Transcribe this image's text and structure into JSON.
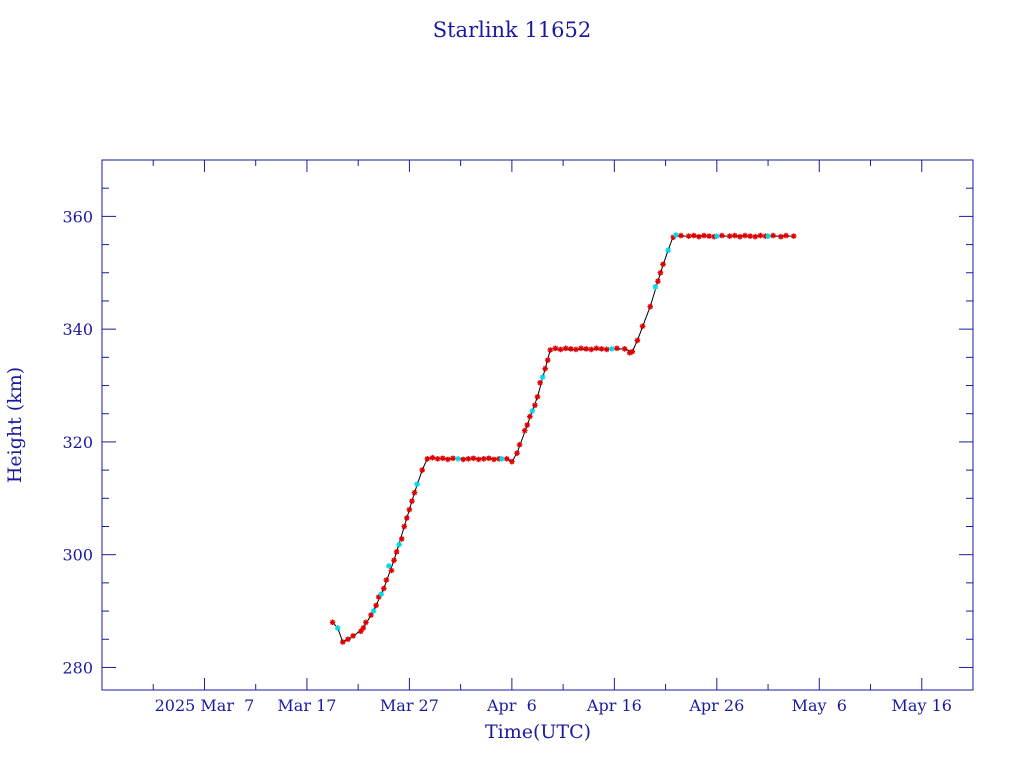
{
  "chart_data": {
    "type": "scatter",
    "title": "Starlink 11652",
    "xlabel": "Time(UTC)",
    "ylabel": "Height (km)",
    "x_is_date": true,
    "xlim": [
      "2025-02-25",
      "2025-05-21"
    ],
    "ylim": [
      276,
      370
    ],
    "x_ticks": [
      {
        "date": "2025-03-07",
        "label": "2025 Mar  7"
      },
      {
        "date": "2025-03-17",
        "label": "Mar 17"
      },
      {
        "date": "2025-03-27",
        "label": "Mar 27"
      },
      {
        "date": "2025-04-06",
        "label": "Apr  6"
      },
      {
        "date": "2025-04-16",
        "label": "Apr 16"
      },
      {
        "date": "2025-04-26",
        "label": "Apr 26"
      },
      {
        "date": "2025-05-06",
        "label": "May  6"
      },
      {
        "date": "2025-05-16",
        "label": "May 16"
      }
    ],
    "x_minor_tick_days": 5,
    "y_ticks": [
      280,
      300,
      320,
      340,
      360
    ],
    "y_minor_step": 5,
    "grid": false,
    "colors": {
      "frame": "#1a1aa0",
      "text": "#1a1aa0",
      "line": "#000000",
      "primary_marker": "#e00000",
      "secondary_marker": "#00d8e8"
    },
    "series": [
      {
        "type": "line",
        "points": [
          [
            "2025-03-19 12:00",
            288
          ],
          [
            "2025-03-20 00:00",
            287
          ],
          [
            "2025-03-20 12:00",
            284.5
          ],
          [
            "2025-03-21 12:00",
            285.5
          ],
          [
            "2025-03-22 12:00",
            287
          ],
          [
            "2025-03-23 12:00",
            290
          ],
          [
            "2025-03-24 12:00",
            294
          ],
          [
            "2025-03-25 12:00",
            299
          ],
          [
            "2025-03-26 12:00",
            305
          ],
          [
            "2025-03-27 12:00",
            311
          ],
          [
            "2025-03-28 06:00",
            315
          ],
          [
            "2025-03-28 18:00",
            317
          ],
          [
            "2025-04-05 12:00",
            317
          ],
          [
            "2025-04-06 00:00",
            316.5
          ],
          [
            "2025-04-06 12:00",
            318
          ],
          [
            "2025-04-07 12:00",
            323
          ],
          [
            "2025-04-08 12:00",
            328
          ],
          [
            "2025-04-09 06:00",
            333
          ],
          [
            "2025-04-09 18:00",
            336.3
          ],
          [
            "2025-04-17 00:00",
            336.5
          ],
          [
            "2025-04-17 18:00",
            336
          ],
          [
            "2025-04-18 06:00",
            338
          ],
          [
            "2025-04-19 12:00",
            344
          ],
          [
            "2025-04-20 12:00",
            350
          ],
          [
            "2025-04-21 06:00",
            354
          ],
          [
            "2025-04-21 18:00",
            356.5
          ],
          [
            "2025-05-03 12:00",
            356.5
          ]
        ]
      },
      {
        "type": "scatter",
        "marker": "asterisk",
        "color_key": "primary_marker",
        "points": [
          [
            "2025-03-19 12:00",
            288
          ],
          [
            "2025-03-20 12:00",
            284.5
          ],
          [
            "2025-03-21 00:00",
            285
          ],
          [
            "2025-03-21 12:00",
            285.6
          ],
          [
            "2025-03-22 06:00",
            286.4
          ],
          [
            "2025-03-22 12:00",
            287
          ],
          [
            "2025-03-22 18:00",
            288
          ],
          [
            "2025-03-23 06:00",
            289.3
          ],
          [
            "2025-03-23 18:00",
            291
          ],
          [
            "2025-03-24 00:00",
            292.5
          ],
          [
            "2025-03-24 12:00",
            294
          ],
          [
            "2025-03-24 18:00",
            295.5
          ],
          [
            "2025-03-25 06:00",
            297.2
          ],
          [
            "2025-03-25 12:00",
            299
          ],
          [
            "2025-03-25 18:00",
            300.5
          ],
          [
            "2025-03-26 06:00",
            302.8
          ],
          [
            "2025-03-26 12:00",
            305
          ],
          [
            "2025-03-26 18:00",
            306.5
          ],
          [
            "2025-03-27 00:00",
            308
          ],
          [
            "2025-03-27 06:00",
            309.5
          ],
          [
            "2025-03-27 12:00",
            311
          ],
          [
            "2025-03-28 06:00",
            315
          ],
          [
            "2025-03-28 18:00",
            317
          ],
          [
            "2025-03-29 06:00",
            317.2
          ],
          [
            "2025-03-29 18:00",
            317
          ],
          [
            "2025-03-30 06:00",
            317.1
          ],
          [
            "2025-03-30 18:00",
            316.9
          ],
          [
            "2025-03-31 06:00",
            317.1
          ],
          [
            "2025-04-01 06:00",
            316.9
          ],
          [
            "2025-04-01 18:00",
            317
          ],
          [
            "2025-04-02 06:00",
            317.1
          ],
          [
            "2025-04-02 18:00",
            316.9
          ],
          [
            "2025-04-03 06:00",
            317
          ],
          [
            "2025-04-03 18:00",
            317.1
          ],
          [
            "2025-04-04 06:00",
            316.9
          ],
          [
            "2025-04-04 18:00",
            317
          ],
          [
            "2025-04-05 12:00",
            317
          ],
          [
            "2025-04-06 00:00",
            316.5
          ],
          [
            "2025-04-06 12:00",
            318
          ],
          [
            "2025-04-06 18:00",
            319.5
          ],
          [
            "2025-04-07 06:00",
            322
          ],
          [
            "2025-04-07 12:00",
            323
          ],
          [
            "2025-04-07 18:00",
            324.5
          ],
          [
            "2025-04-08 06:00",
            326.5
          ],
          [
            "2025-04-08 12:00",
            328
          ],
          [
            "2025-04-08 18:00",
            330.5
          ],
          [
            "2025-04-09 06:00",
            333
          ],
          [
            "2025-04-09 12:00",
            334.5
          ],
          [
            "2025-04-09 18:00",
            336.3
          ],
          [
            "2025-04-10 06:00",
            336.6
          ],
          [
            "2025-04-10 18:00",
            336.4
          ],
          [
            "2025-04-11 06:00",
            336.6
          ],
          [
            "2025-04-11 18:00",
            336.5
          ],
          [
            "2025-04-12 06:00",
            336.4
          ],
          [
            "2025-04-12 18:00",
            336.6
          ],
          [
            "2025-04-13 06:00",
            336.5
          ],
          [
            "2025-04-13 18:00",
            336.4
          ],
          [
            "2025-04-14 06:00",
            336.6
          ],
          [
            "2025-04-14 18:00",
            336.5
          ],
          [
            "2025-04-15 06:00",
            336.4
          ],
          [
            "2025-04-16 06:00",
            336.6
          ],
          [
            "2025-04-17 00:00",
            336.5
          ],
          [
            "2025-04-17 12:00",
            335.8
          ],
          [
            "2025-04-17 18:00",
            336
          ],
          [
            "2025-04-18 06:00",
            338
          ],
          [
            "2025-04-18 18:00",
            340.5
          ],
          [
            "2025-04-19 12:00",
            344
          ],
          [
            "2025-04-20 06:00",
            348.5
          ],
          [
            "2025-04-20 12:00",
            350
          ],
          [
            "2025-04-20 18:00",
            351.5
          ],
          [
            "2025-04-21 18:00",
            356.3
          ],
          [
            "2025-04-22 12:00",
            356.6
          ],
          [
            "2025-04-23 06:00",
            356.5
          ],
          [
            "2025-04-23 18:00",
            356.6
          ],
          [
            "2025-04-24 06:00",
            356.4
          ],
          [
            "2025-04-24 18:00",
            356.6
          ],
          [
            "2025-04-25 06:00",
            356.5
          ],
          [
            "2025-04-25 18:00",
            356.4
          ],
          [
            "2025-04-26 12:00",
            356.6
          ],
          [
            "2025-04-27 06:00",
            356.5
          ],
          [
            "2025-04-27 18:00",
            356.6
          ],
          [
            "2025-04-28 06:00",
            356.4
          ],
          [
            "2025-04-28 18:00",
            356.6
          ],
          [
            "2025-04-29 06:00",
            356.5
          ],
          [
            "2025-04-29 18:00",
            356.4
          ],
          [
            "2025-04-30 06:00",
            356.6
          ],
          [
            "2025-04-30 18:00",
            356.5
          ],
          [
            "2025-05-01 12:00",
            356.6
          ],
          [
            "2025-05-02 06:00",
            356.4
          ],
          [
            "2025-05-02 18:00",
            356.6
          ],
          [
            "2025-05-03 12:00",
            356.5
          ]
        ]
      },
      {
        "type": "scatter",
        "marker": "asterisk",
        "color_key": "secondary_marker",
        "points": [
          [
            "2025-03-20 00:00",
            287
          ],
          [
            "2025-03-23 12:00",
            290
          ],
          [
            "2025-03-24 06:00",
            293
          ],
          [
            "2025-03-25 00:00",
            298
          ],
          [
            "2025-03-26 00:00",
            301.8
          ],
          [
            "2025-03-27 18:00",
            312.5
          ],
          [
            "2025-03-31 18:00",
            317
          ],
          [
            "2025-04-05 00:00",
            317
          ],
          [
            "2025-04-08 00:00",
            325.5
          ],
          [
            "2025-04-09 00:00",
            331.5
          ],
          [
            "2025-04-15 18:00",
            336.5
          ],
          [
            "2025-04-20 00:00",
            347.5
          ],
          [
            "2025-04-21 06:00",
            354
          ],
          [
            "2025-04-22 00:00",
            356.7
          ],
          [
            "2025-04-26 00:00",
            356.5
          ],
          [
            "2025-05-01 00:00",
            356.5
          ]
        ]
      }
    ]
  }
}
